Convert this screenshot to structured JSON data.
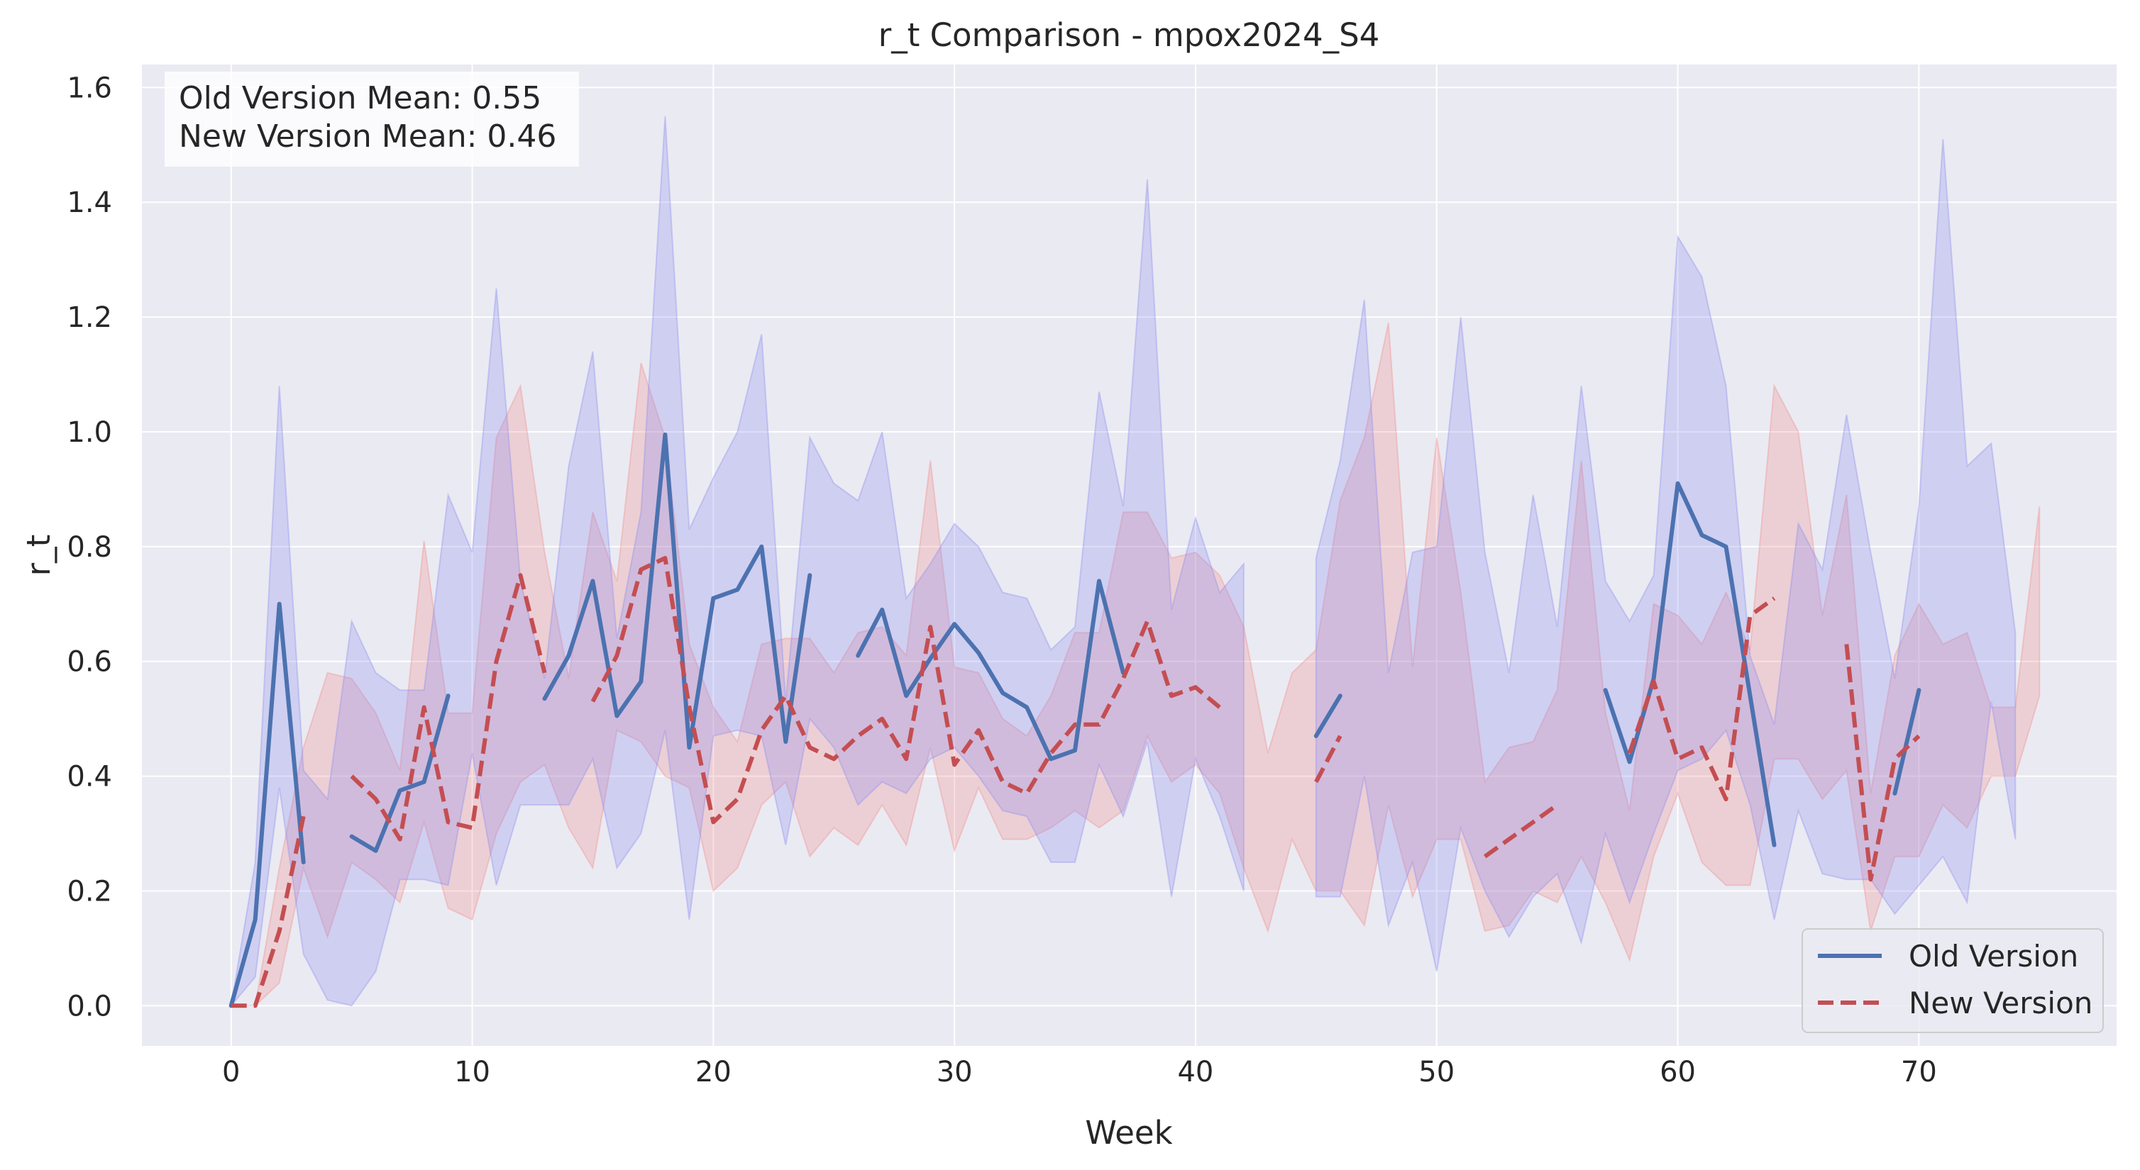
{
  "chart_data": {
    "type": "line",
    "title": "r_t Comparison - mpox2024_S4",
    "xlabel": "Week",
    "ylabel": "r_t",
    "xlim": [
      -3.7,
      78.2
    ],
    "ylim": [
      -0.07,
      1.64
    ],
    "xticks": [
      0,
      10,
      20,
      30,
      40,
      50,
      60,
      70
    ],
    "xtick_labels": [
      "0",
      "10",
      "20",
      "30",
      "40",
      "50",
      "60",
      "70"
    ],
    "yticks": [
      0.0,
      0.2,
      0.4,
      0.6,
      0.8,
      1.0,
      1.2,
      1.4,
      1.6
    ],
    "ytick_labels": [
      "0.0",
      "0.2",
      "0.4",
      "0.6",
      "0.8",
      "1.0",
      "1.2",
      "1.4",
      "1.6"
    ],
    "grid": true,
    "background": "#eaeaf2",
    "legend_position": "lower-right",
    "stats_box": [
      "Old Version Mean: 0.55",
      "New Version Mean: 0.46"
    ],
    "series": [
      {
        "name": "Old Version",
        "color": "#4c72b0",
        "linestyle": "solid",
        "values": [
          0.0,
          0.15,
          0.7,
          0.25,
          null,
          0.295,
          0.27,
          0.375,
          0.39,
          0.54,
          null,
          null,
          null,
          0.535,
          0.61,
          0.74,
          0.505,
          0.565,
          0.995,
          0.45,
          0.71,
          0.725,
          0.8,
          0.46,
          0.75,
          null,
          0.61,
          0.69,
          0.54,
          0.605,
          0.665,
          0.615,
          0.545,
          0.52,
          0.43,
          0.445,
          0.74,
          0.58,
          null,
          null,
          null,
          null,
          null,
          null,
          null,
          0.47,
          0.54,
          null,
          null,
          null,
          null,
          null,
          null,
          null,
          null,
          null,
          null,
          0.55,
          0.425,
          0.57,
          0.91,
          0.82,
          0.8,
          0.54,
          0.28,
          null,
          null,
          null,
          null,
          0.37,
          0.55,
          null,
          null,
          null,
          null,
          null
        ],
        "band_color": "#8a8af0",
        "band_x": [
          0,
          1,
          2,
          3,
          4,
          5,
          6,
          7,
          8,
          9,
          10,
          11,
          12,
          13,
          14,
          15,
          16,
          17,
          18,
          19,
          20,
          21,
          22,
          23,
          24,
          25,
          26,
          27,
          28,
          29,
          30,
          31,
          32,
          33,
          34,
          35,
          36,
          37,
          38,
          39,
          40,
          41,
          42,
          null,
          45,
          46,
          47,
          48,
          49,
          50,
          51,
          52,
          53,
          54,
          55,
          56,
          57,
          58,
          59,
          60,
          61,
          62,
          63,
          64,
          65,
          66,
          67,
          68,
          69,
          70,
          71,
          72,
          73,
          74
        ],
        "band_lower": [
          0.0,
          0.05,
          0.38,
          0.09,
          0.01,
          0.0,
          0.06,
          0.22,
          0.22,
          0.21,
          0.44,
          0.21,
          0.35,
          0.35,
          0.35,
          0.43,
          0.24,
          0.3,
          0.48,
          0.15,
          0.47,
          0.48,
          0.47,
          0.28,
          0.5,
          0.45,
          0.35,
          0.39,
          0.37,
          0.43,
          0.45,
          0.4,
          0.34,
          0.33,
          0.25,
          0.25,
          0.42,
          0.33,
          0.46,
          0.19,
          0.43,
          0.33,
          0.2,
          null,
          0.19,
          0.19,
          0.4,
          0.14,
          0.25,
          0.06,
          0.31,
          0.2,
          0.12,
          0.19,
          0.23,
          0.11,
          0.3,
          0.18,
          0.3,
          0.41,
          0.43,
          0.48,
          0.35,
          0.15,
          0.34,
          0.23,
          0.22,
          0.22,
          0.16,
          0.21,
          0.26,
          0.18,
          0.53,
          0.29
        ],
        "band_upper": [
          0.0,
          0.25,
          1.08,
          0.41,
          0.36,
          0.67,
          0.58,
          0.55,
          0.55,
          0.89,
          0.79,
          1.25,
          0.74,
          0.57,
          0.94,
          1.14,
          0.64,
          0.86,
          1.55,
          0.83,
          0.92,
          1.0,
          1.17,
          0.53,
          0.99,
          0.91,
          0.88,
          1.0,
          0.71,
          0.77,
          0.84,
          0.8,
          0.72,
          0.71,
          0.62,
          0.66,
          1.07,
          0.87,
          1.44,
          0.69,
          0.85,
          0.72,
          0.77,
          null,
          0.78,
          0.95,
          1.23,
          0.58,
          0.79,
          0.8,
          1.2,
          0.79,
          0.58,
          0.89,
          0.66,
          1.08,
          0.74,
          0.67,
          0.75,
          1.34,
          1.27,
          1.08,
          0.61,
          0.49,
          0.84,
          0.76,
          1.03,
          0.79,
          0.57,
          0.87,
          1.51,
          0.94,
          0.98,
          0.65
        ]
      },
      {
        "name": "New Version",
        "color": "#c44e52",
        "linestyle": "dashed",
        "values": [
          0.0,
          0.0,
          0.13,
          0.33,
          null,
          0.4,
          0.36,
          0.29,
          0.52,
          0.32,
          0.31,
          0.6,
          0.75,
          0.58,
          null,
          0.53,
          0.61,
          0.76,
          0.78,
          0.52,
          0.32,
          0.36,
          0.48,
          0.54,
          0.45,
          0.43,
          0.47,
          0.5,
          0.43,
          0.66,
          0.42,
          0.48,
          0.39,
          0.37,
          0.44,
          0.49,
          0.49,
          0.57,
          0.67,
          0.54,
          0.555,
          0.52,
          null,
          null,
          null,
          0.39,
          0.47,
          null,
          null,
          null,
          null,
          null,
          0.26,
          0.29,
          0.32,
          0.35,
          null,
          null,
          0.44,
          0.565,
          0.43,
          0.45,
          0.36,
          0.68,
          0.71,
          null,
          null,
          0.63,
          0.22,
          0.43,
          0.47,
          null,
          null,
          null,
          null,
          null
        ],
        "band_color": "#f08a8a",
        "band_x": [
          0,
          1,
          2,
          3,
          4,
          5,
          6,
          7,
          8,
          9,
          10,
          11,
          12,
          13,
          14,
          15,
          16,
          17,
          18,
          19,
          20,
          21,
          22,
          23,
          24,
          25,
          26,
          27,
          28,
          29,
          30,
          31,
          32,
          33,
          34,
          35,
          36,
          37,
          38,
          39,
          40,
          41,
          42,
          43,
          44,
          45,
          46,
          47,
          48,
          49,
          50,
          51,
          52,
          53,
          54,
          55,
          56,
          57,
          58,
          59,
          60,
          61,
          62,
          63,
          64,
          65,
          66,
          67,
          68,
          69,
          70,
          71,
          72,
          73,
          74,
          75
        ],
        "band_lower": [
          0.0,
          0.0,
          0.04,
          0.24,
          0.12,
          0.25,
          0.22,
          0.18,
          0.32,
          0.17,
          0.15,
          0.3,
          0.39,
          0.42,
          0.31,
          0.24,
          0.48,
          0.46,
          0.4,
          0.38,
          0.2,
          0.24,
          0.35,
          0.39,
          0.26,
          0.31,
          0.28,
          0.35,
          0.28,
          0.45,
          0.27,
          0.38,
          0.29,
          0.29,
          0.31,
          0.34,
          0.31,
          0.34,
          0.47,
          0.39,
          0.42,
          0.37,
          0.24,
          0.13,
          0.29,
          0.2,
          0.2,
          0.14,
          0.35,
          0.19,
          0.29,
          0.29,
          0.13,
          0.14,
          0.2,
          0.18,
          0.26,
          0.18,
          0.08,
          0.26,
          0.37,
          0.25,
          0.21,
          0.21,
          0.43,
          0.43,
          0.36,
          0.41,
          0.13,
          0.26,
          0.26,
          0.35,
          0.31,
          0.4,
          0.4,
          0.54
        ],
        "band_upper": [
          0.0,
          0.0,
          0.24,
          0.45,
          0.58,
          0.57,
          0.51,
          0.41,
          0.81,
          0.51,
          0.51,
          0.99,
          1.08,
          0.79,
          0.57,
          0.86,
          0.74,
          1.12,
          0.99,
          0.63,
          0.52,
          0.46,
          0.63,
          0.64,
          0.64,
          0.58,
          0.65,
          0.66,
          0.61,
          0.95,
          0.59,
          0.58,
          0.5,
          0.47,
          0.54,
          0.65,
          0.65,
          0.86,
          0.86,
          0.78,
          0.79,
          0.75,
          0.66,
          0.44,
          0.58,
          0.62,
          0.88,
          0.99,
          1.19,
          0.59,
          0.99,
          0.72,
          0.39,
          0.45,
          0.46,
          0.55,
          0.95,
          0.51,
          0.34,
          0.7,
          0.68,
          0.63,
          0.72,
          0.62,
          1.08,
          1.0,
          0.68,
          0.89,
          0.37,
          0.61,
          0.7,
          0.63,
          0.65,
          0.52,
          0.52,
          0.87
        ]
      }
    ]
  }
}
